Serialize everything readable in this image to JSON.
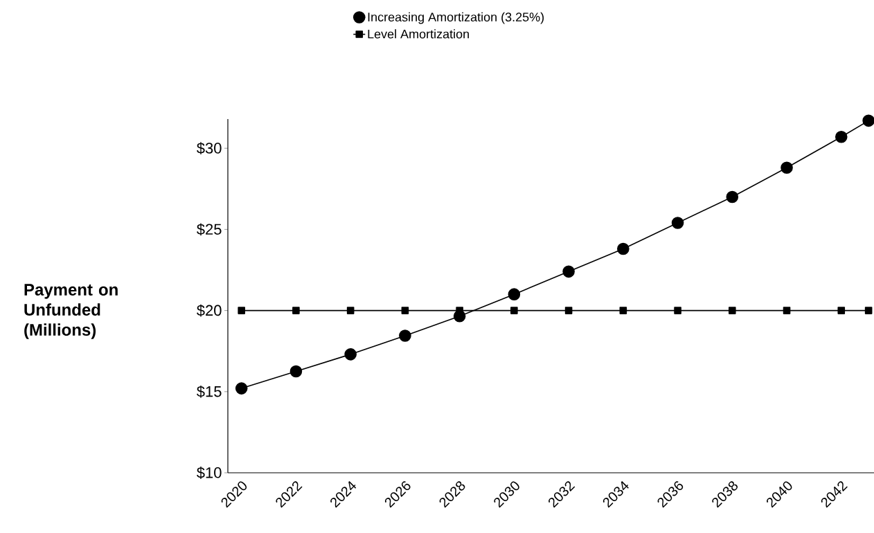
{
  "chart_data": {
    "type": "line",
    "ylabel": "Payment on Unfunded (Millions)",
    "x": [
      2020,
      2022,
      2024,
      2026,
      2028,
      2030,
      2032,
      2034,
      2036,
      2038,
      2040,
      2042,
      2043
    ],
    "series": [
      {
        "name": "Increasing Amortization (3.25%)",
        "color": "#000000",
        "marker": "circle",
        "values": [
          15.2,
          16.25,
          17.3,
          18.45,
          19.65,
          21.0,
          22.4,
          23.8,
          25.4,
          27.0,
          28.8,
          30.7,
          31.7
        ]
      },
      {
        "name": "Level Amortization",
        "color": "#000000",
        "marker": "square",
        "values": [
          20,
          20,
          20,
          20,
          20,
          20,
          20,
          20,
          20,
          20,
          20,
          20,
          20
        ]
      }
    ],
    "xlim": [
      2019.5,
      2043.2
    ],
    "ylim": [
      10,
      31.8
    ],
    "xticks": [
      2020,
      2022,
      2024,
      2026,
      2028,
      2030,
      2032,
      2034,
      2036,
      2038,
      2040,
      2042
    ],
    "yticks": [
      {
        "value": 10,
        "label": "$10"
      },
      {
        "value": 15,
        "label": "$15"
      },
      {
        "value": 20,
        "label": "$20"
      },
      {
        "value": 25,
        "label": "$25"
      },
      {
        "value": 30,
        "label": "$30"
      }
    ],
    "legend": "top",
    "line_style": "solid",
    "grid": false
  }
}
